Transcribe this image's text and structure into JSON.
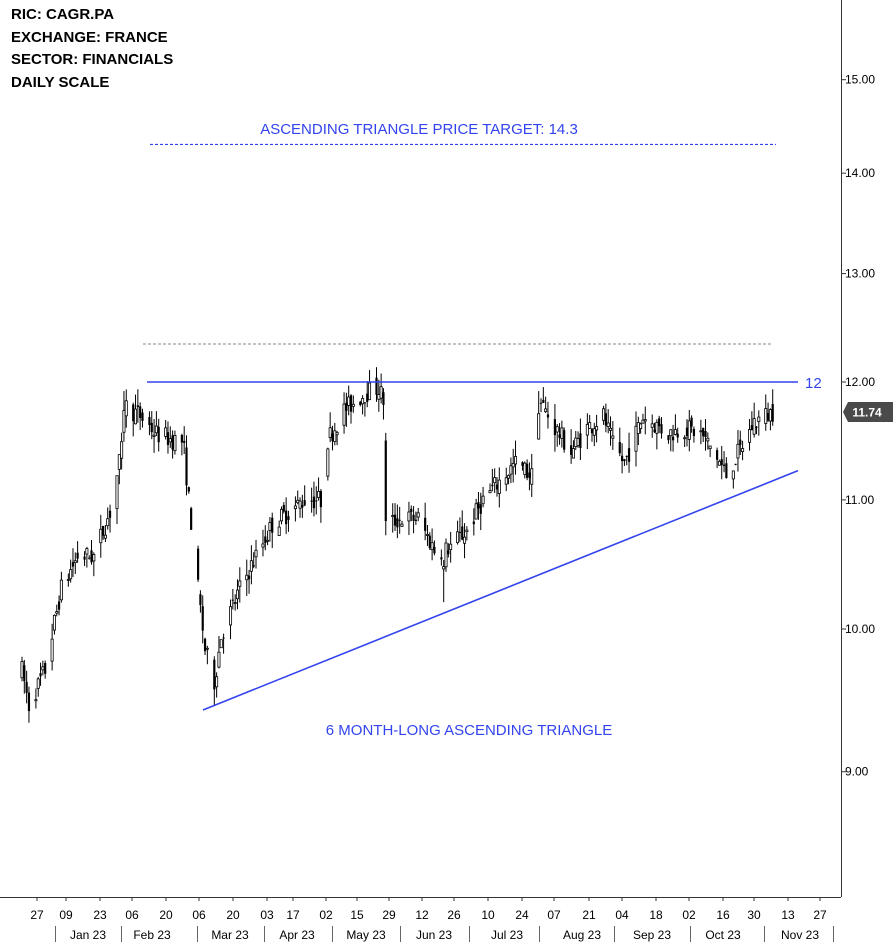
{
  "info": {
    "ric": "RIC:  CAGR.PA",
    "exchange": "EXCHANGE:  FRANCE",
    "sector": "SECTOR:  FINANCIALS",
    "scale": "DAILY SCALE"
  },
  "annotations": {
    "target_label": "ASCENDING TRIANGLE PRICE TARGET: 14.3",
    "pattern_label": "6 MONTH-LONG ASCENDING TRIANGLE",
    "resistance_label": "12",
    "last_price": "11.74"
  },
  "colors": {
    "annotation": "#3344ee",
    "dashed_gray": "#888888",
    "price_badge": "#4a4a4a",
    "candles": "#000000"
  },
  "chart_data": {
    "type": "candlestick",
    "scale": "log",
    "y_ticks": [
      "15.00",
      "14.00",
      "13.00",
      "12.00",
      "11.00",
      "10.00",
      "9.00"
    ],
    "y_tick_values": [
      15,
      14,
      13,
      12,
      11,
      10,
      9
    ],
    "x_day_ticks": [
      "27",
      "09",
      "23",
      "06",
      "20",
      "06",
      "20",
      "03",
      "17",
      "02",
      "15",
      "29",
      "12",
      "26",
      "10",
      "24",
      "07",
      "21",
      "04",
      "18",
      "02",
      "16",
      "30",
      "13",
      "27"
    ],
    "x_month_ticks": [
      "Jan 23",
      "Feb 23",
      "Mar 23",
      "Apr 23",
      "May 23",
      "Jun 23",
      "Jul 23",
      "Aug 23",
      "Sep 23",
      "Oct 23",
      "Nov 23"
    ],
    "price_path": [
      [
        "2022-12-27",
        9.7
      ],
      [
        "2022-12-30",
        9.45
      ],
      [
        "2023-01-06",
        9.7
      ],
      [
        "2023-01-13",
        10.3
      ],
      [
        "2023-01-20",
        10.55
      ],
      [
        "2023-01-27",
        10.55
      ],
      [
        "2023-02-03",
        10.9
      ],
      [
        "2023-02-08",
        11.4
      ],
      [
        "2023-02-09",
        11.8
      ],
      [
        "2023-02-16",
        11.7
      ],
      [
        "2023-02-23",
        11.55
      ],
      [
        "2023-03-02",
        11.5
      ],
      [
        "2023-03-07",
        11.4
      ],
      [
        "2023-03-09",
        11.0
      ],
      [
        "2023-03-13",
        10.3
      ],
      [
        "2023-03-16",
        9.85
      ],
      [
        "2023-03-20",
        9.6
      ],
      [
        "2023-03-23",
        9.95
      ],
      [
        "2023-03-31",
        10.3
      ],
      [
        "2023-04-14",
        10.8
      ],
      [
        "2023-04-28",
        11.0
      ],
      [
        "2023-05-05",
        11.0
      ],
      [
        "2023-05-08",
        11.5
      ],
      [
        "2023-05-15",
        11.75
      ],
      [
        "2023-05-24",
        11.9
      ],
      [
        "2023-05-30",
        11.95
      ],
      [
        "2023-06-02",
        10.8
      ],
      [
        "2023-06-09",
        10.85
      ],
      [
        "2023-06-16",
        10.85
      ],
      [
        "2023-06-23",
        10.6
      ],
      [
        "2023-06-28",
        10.6
      ],
      [
        "2023-07-07",
        10.75
      ],
      [
        "2023-07-14",
        11.0
      ],
      [
        "2023-07-21",
        11.15
      ],
      [
        "2023-07-28",
        11.3
      ],
      [
        "2023-08-04",
        11.2
      ],
      [
        "2023-08-07",
        11.85
      ],
      [
        "2023-08-14",
        11.6
      ],
      [
        "2023-08-21",
        11.4
      ],
      [
        "2023-08-28",
        11.6
      ],
      [
        "2023-09-04",
        11.7
      ],
      [
        "2023-09-08",
        11.45
      ],
      [
        "2023-09-13",
        11.3
      ],
      [
        "2023-09-21",
        11.7
      ],
      [
        "2023-10-02",
        11.55
      ],
      [
        "2023-10-09",
        11.6
      ],
      [
        "2023-10-16",
        11.55
      ],
      [
        "2023-10-23",
        11.35
      ],
      [
        "2023-10-27",
        11.2
      ],
      [
        "2023-11-03",
        11.45
      ],
      [
        "2023-11-08",
        11.65
      ],
      [
        "2023-11-16",
        11.74
      ]
    ],
    "resistance": 12,
    "price_target": 14.3,
    "support_line": {
      "start": [
        "2023-03-15",
        9.42
      ],
      "end": [
        "2023-11-17",
        11.24
      ]
    }
  }
}
